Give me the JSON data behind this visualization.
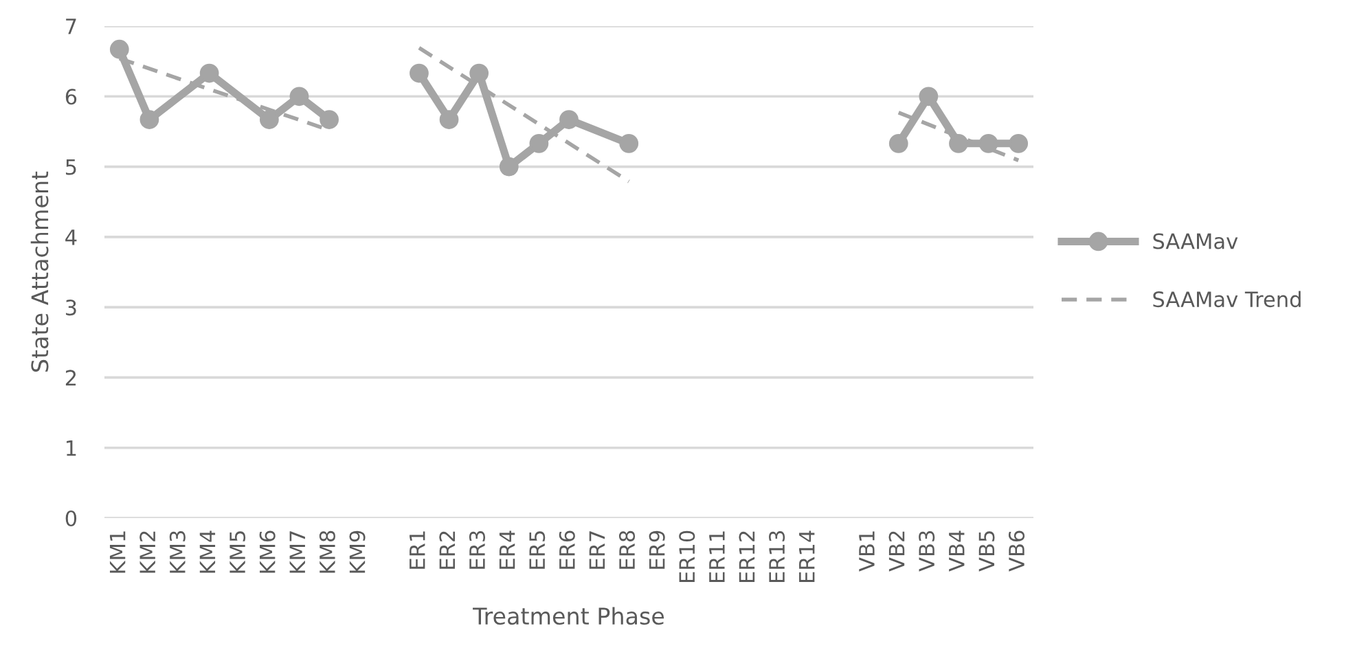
{
  "chart_data": {
    "type": "line",
    "xlabel": "Treatment Phase",
    "ylabel": "State Attachment",
    "categories": [
      "KM1",
      "KM2",
      "KM3",
      "KM4",
      "KM5",
      "KM6",
      "KM7",
      "KM8",
      "KM9",
      null,
      "ER1",
      "ER2",
      "ER3",
      "ER4",
      "ER5",
      "ER6",
      "ER7",
      "ER8",
      "ER9",
      "ER10",
      "ER11",
      "ER12",
      "ER13",
      "ER14",
      null,
      "VB1",
      "VB2",
      "VB3",
      "VB4",
      "VB5",
      "VB6"
    ],
    "ylim": [
      0,
      7
    ],
    "yticks": [
      0,
      1,
      2,
      3,
      4,
      5,
      6,
      7
    ],
    "grid": "y",
    "legend": "right",
    "series": [
      {
        "name": "SAAMav",
        "color": "#a5a5a5",
        "marker": "circle",
        "line_style": "solid",
        "values": [
          6.67,
          5.67,
          null,
          6.33,
          null,
          5.67,
          6.0,
          5.67,
          null,
          null,
          null,
          null,
          null,
          null,
          null,
          null,
          null,
          null,
          null,
          null,
          null,
          null,
          null,
          null,
          null,
          null,
          null,
          null,
          null,
          null,
          null
        ]
      },
      {
        "color": "#a5a5a5",
        "marker": "circle",
        "line_style": "solid",
        "values": [
          null,
          null,
          null,
          null,
          null,
          null,
          null,
          null,
          null,
          null,
          6.33,
          5.67,
          6.33,
          5.0,
          5.33,
          5.67,
          null,
          5.33,
          null,
          null,
          null,
          null,
          null,
          null,
          null,
          null,
          null,
          null,
          null,
          null,
          null
        ]
      },
      {
        "color": "#a5a5a5",
        "marker": "circle",
        "line_style": "solid",
        "values": [
          null,
          null,
          null,
          null,
          null,
          null,
          null,
          null,
          null,
          null,
          null,
          null,
          null,
          null,
          null,
          null,
          null,
          null,
          null,
          null,
          null,
          null,
          null,
          null,
          null,
          null,
          5.33,
          6.0,
          5.33,
          5.33,
          5.33
        ]
      },
      {
        "name": "SAAMav Trend",
        "color": "#a5a5a5",
        "marker": "none",
        "line_style": "dashed",
        "values": [
          6.54,
          null,
          null,
          null,
          null,
          null,
          null,
          5.52,
          null,
          null,
          null,
          null,
          null,
          null,
          null,
          null,
          null,
          null,
          null,
          null,
          null,
          null,
          null,
          null,
          null,
          null,
          null,
          null,
          null,
          null,
          null
        ]
      },
      {
        "color": "#a5a5a5",
        "marker": "none",
        "line_style": "dashed",
        "values": [
          null,
          null,
          null,
          null,
          null,
          null,
          null,
          null,
          null,
          null,
          6.69,
          null,
          null,
          null,
          null,
          null,
          null,
          4.79,
          null,
          null,
          null,
          null,
          null,
          null,
          null,
          null,
          null,
          null,
          null,
          null,
          null
        ]
      },
      {
        "color": "#a5a5a5",
        "marker": "none",
        "line_style": "dashed",
        "values": [
          null,
          null,
          null,
          null,
          null,
          null,
          null,
          null,
          null,
          null,
          null,
          null,
          null,
          null,
          null,
          null,
          null,
          null,
          null,
          null,
          null,
          null,
          null,
          null,
          null,
          null,
          5.77,
          null,
          null,
          null,
          5.09
        ]
      }
    ]
  }
}
